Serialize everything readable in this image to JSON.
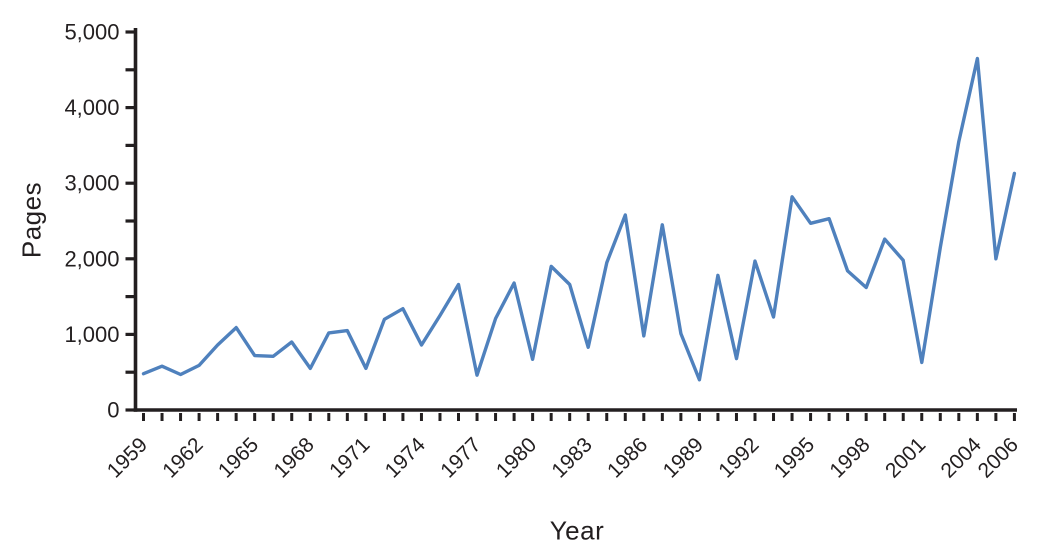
{
  "chart_data": {
    "type": "line",
    "title": "",
    "xlabel": "Year",
    "ylabel": "Pages",
    "x": [
      1959,
      1960,
      1961,
      1962,
      1963,
      1964,
      1965,
      1966,
      1967,
      1968,
      1969,
      1970,
      1971,
      1972,
      1973,
      1974,
      1975,
      1976,
      1977,
      1978,
      1979,
      1980,
      1981,
      1982,
      1983,
      1984,
      1985,
      1986,
      1987,
      1988,
      1989,
      1990,
      1991,
      1992,
      1993,
      1994,
      1995,
      1996,
      1997,
      1998,
      1999,
      2000,
      2001,
      2002,
      2003,
      2004,
      2005,
      2006
    ],
    "values": [
      480,
      580,
      470,
      590,
      860,
      1090,
      720,
      710,
      900,
      550,
      1020,
      1050,
      550,
      1200,
      1340,
      860,
      1250,
      1660,
      460,
      1210,
      1680,
      670,
      1900,
      1660,
      830,
      1950,
      2580,
      980,
      2450,
      1010,
      400,
      1780,
      680,
      1970,
      1230,
      2820,
      2470,
      2530,
      1840,
      1620,
      2260,
      1980,
      630,
      2150,
      3550,
      4650,
      2000,
      3130
    ],
    "x_tick_label_years": [
      1959,
      1962,
      1965,
      1968,
      1971,
      1974,
      1977,
      1980,
      1983,
      1986,
      1989,
      1992,
      1995,
      1998,
      2001,
      2004,
      2006
    ],
    "y_tick_labels": [
      "0",
      "1,000",
      "2,000",
      "3,000",
      "4,000",
      "5,000"
    ],
    "y_major_ticks": [
      0,
      1000,
      2000,
      3000,
      4000,
      5000
    ],
    "y_minor_step": 500,
    "ylim": [
      0,
      5000
    ],
    "xlim": [
      1959,
      2006
    ],
    "grid": "off",
    "legend": "none",
    "line_color": "#4f81bd",
    "axis_color": "#231f20",
    "text_color": "#231f20"
  }
}
